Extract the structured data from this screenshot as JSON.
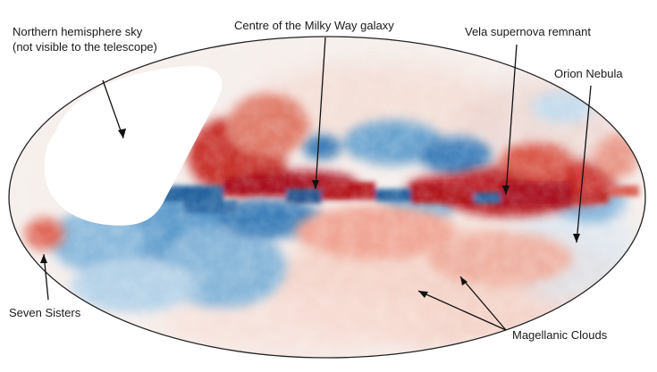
{
  "labels": {
    "northern_sky_line1": "Northern hemisphere sky",
    "northern_sky_line2": "(not visible to the telescope)",
    "galactic_centre": "Centre of the Milky Way galaxy",
    "vela": "Vela supernova remnant",
    "orion": "Orion Nebula",
    "seven_sisters": "Seven Sisters",
    "magellanic": "Magellanic Clouds"
  },
  "colors": {
    "positive": "#c0151b",
    "negative": "#2166ac",
    "neutral": "#f7f2ef",
    "masked": "#ffffff"
  }
}
